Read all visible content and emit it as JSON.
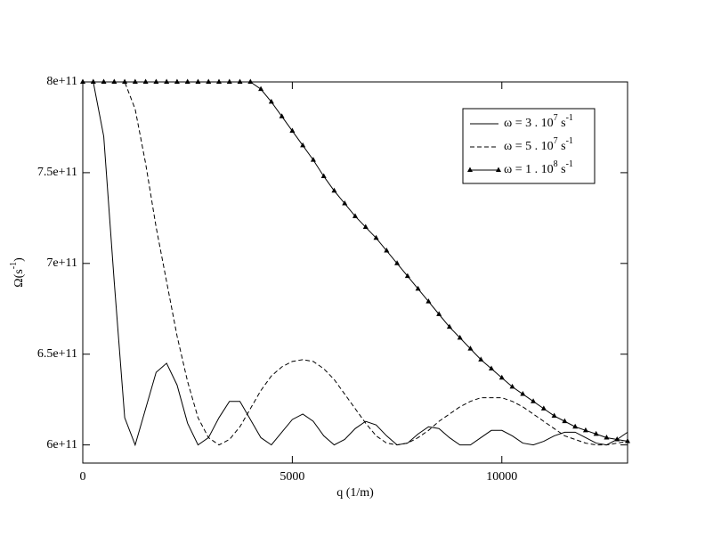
{
  "chart_data": {
    "type": "line",
    "x_label": "q (1/m)",
    "y_label": [
      "Ω(s",
      "-1",
      ")"
    ],
    "x": [
      0,
      250,
      500,
      750,
      1000,
      1250,
      1500,
      1750,
      2000,
      2250,
      2500,
      2750,
      3000,
      3250,
      3500,
      3750,
      4000,
      4250,
      4500,
      4750,
      5000,
      5250,
      5500,
      5750,
      6000,
      6250,
      6500,
      6750,
      7000,
      7250,
      7500,
      7750,
      8000,
      8250,
      8500,
      8750,
      9000,
      9250,
      9500,
      9750,
      10000,
      10250,
      10500,
      10750,
      11000,
      11250,
      11500,
      11750,
      12000,
      12250,
      12500,
      12750,
      13000
    ],
    "series": [
      {
        "name": [
          "ω = 3 . 10",
          "7",
          " s",
          "-1"
        ],
        "color": "#000000",
        "dash": "solid",
        "marker": "none",
        "values": [
          800000000000.0,
          800000000000.0,
          770000000000.0,
          690000000000.0,
          615000000000.0,
          600000000000.0,
          620000000000.0,
          640000000000.0,
          645000000000.0,
          633000000000.0,
          612000000000.0,
          600000000000.0,
          604000000000.0,
          615000000000.0,
          624000000000.0,
          624000000000.0,
          614000000000.0,
          604000000000.0,
          600000000000.0,
          607000000000.0,
          614000000000.0,
          617000000000.0,
          613000000000.0,
          605000000000.0,
          600000000000.0,
          603000000000.0,
          609000000000.0,
          613000000000.0,
          611000000000.0,
          605000000000.0,
          600000000000.0,
          601000000000.0,
          606000000000.0,
          610000000000.0,
          609000000000.0,
          604000000000.0,
          600000000000.0,
          600000000000.0,
          604000000000.0,
          608000000000.0,
          608000000000.0,
          605000000000.0,
          601000000000.0,
          600000000000.0,
          602000000000.0,
          605000000000.0,
          607000000000.0,
          607000000000.0,
          604000000000.0,
          601000000000.0,
          600000000000.0,
          603000000000.0,
          607000000000.0
        ]
      },
      {
        "name": [
          "ω = 5 . 10",
          "7",
          " s",
          "-1"
        ],
        "color": "#000000",
        "dash": "dashed",
        "marker": "none",
        "values": [
          800000000000.0,
          800000000000.0,
          800000000000.0,
          800000000000.0,
          800000000000.0,
          785000000000.0,
          755000000000.0,
          720000000000.0,
          690000000000.0,
          660000000000.0,
          635000000000.0,
          615000000000.0,
          604000000000.0,
          600000000000.0,
          603000000000.0,
          610000000000.0,
          620000000000.0,
          630000000000.0,
          638000000000.0,
          643000000000.0,
          646000000000.0,
          647000000000.0,
          646000000000.0,
          642000000000.0,
          636000000000.0,
          628000000000.0,
          620000000000.0,
          612000000000.0,
          605000000000.0,
          601000000000.0,
          600000000000.0,
          601000000000.0,
          604000000000.0,
          608000000000.0,
          613000000000.0,
          617000000000.0,
          621000000000.0,
          624000000000.0,
          626000000000.0,
          626000000000.0,
          626000000000.0,
          624000000000.0,
          621000000000.0,
          617000000000.0,
          613000000000.0,
          609000000000.0,
          605000000000.0,
          603000000000.0,
          601000000000.0,
          600000000000.0,
          600000000000.0,
          601000000000.0,
          602000000000.0
        ]
      },
      {
        "name": [
          "ω = 1 . 10",
          "8",
          " s",
          "-1"
        ],
        "color": "#000000",
        "dash": "solid",
        "marker": "triangle",
        "values": [
          800000000000.0,
          800000000000.0,
          800000000000.0,
          800000000000.0,
          800000000000.0,
          800000000000.0,
          800000000000.0,
          800000000000.0,
          800000000000.0,
          800000000000.0,
          800000000000.0,
          800000000000.0,
          800000000000.0,
          800000000000.0,
          800000000000.0,
          800000000000.0,
          800000000000.0,
          796000000000.0,
          789000000000.0,
          781000000000.0,
          773000000000.0,
          765000000000.0,
          757000000000.0,
          748000000000.0,
          740000000000.0,
          733000000000.0,
          726000000000.0,
          720000000000.0,
          714000000000.0,
          707000000000.0,
          700000000000.0,
          693000000000.0,
          686000000000.0,
          679000000000.0,
          672000000000.0,
          665000000000.0,
          659000000000.0,
          653000000000.0,
          647000000000.0,
          642000000000.0,
          637000000000.0,
          632000000000.0,
          628000000000.0,
          624000000000.0,
          620000000000.0,
          616000000000.0,
          613000000000.0,
          610000000000.0,
          608000000000.0,
          606000000000.0,
          604000000000.0,
          603000000000.0,
          602000000000.0
        ]
      }
    ],
    "xlim": [
      0,
      13000
    ],
    "xticks": [
      0,
      5000,
      10000
    ],
    "ylim": [
      590000000000.0,
      800000000000.0
    ],
    "yticks": [
      {
        "value": 600000000000.0,
        "label": "6e+11"
      },
      {
        "value": 650000000000.0,
        "label": "6.5e+11"
      },
      {
        "value": 700000000000.0,
        "label": "7e+11"
      },
      {
        "value": 750000000000.0,
        "label": "7.5e+11"
      },
      {
        "value": 800000000000.0,
        "label": "8e+11"
      }
    ],
    "grid": false,
    "legend": "upper-right"
  }
}
